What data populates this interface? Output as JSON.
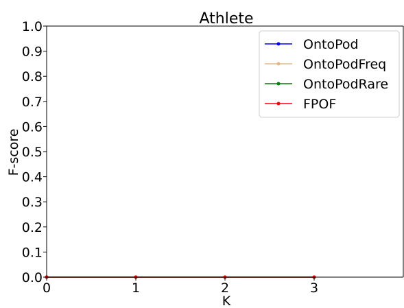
{
  "chart_data": {
    "type": "line",
    "title": "Athlete",
    "xlabel": "K",
    "ylabel": "F-score",
    "xlim": [
      0,
      4
    ],
    "ylim": [
      0,
      1.0
    ],
    "x_ticks": [
      "0",
      "1",
      "2",
      "3"
    ],
    "y_ticks": [
      "0.0",
      "0.1",
      "0.2",
      "0.3",
      "0.4",
      "0.5",
      "0.6",
      "0.7",
      "0.8",
      "0.9",
      "1.0"
    ],
    "x": [
      0,
      1,
      2,
      3
    ],
    "series": [
      {
        "name": "OntoPod",
        "color": "#0000ff",
        "values": [
          0,
          0,
          0,
          0
        ]
      },
      {
        "name": "OntoPodFreq",
        "color": "#deb887",
        "values": [
          0,
          0,
          0,
          0
        ]
      },
      {
        "name": "OntoPodRare",
        "color": "#008000",
        "values": [
          0,
          0,
          0,
          0
        ]
      },
      {
        "name": "FPOF",
        "color": "#ff0000",
        "values": [
          0,
          0,
          0,
          0
        ]
      }
    ],
    "grid": false,
    "legend_position": "top-right"
  }
}
